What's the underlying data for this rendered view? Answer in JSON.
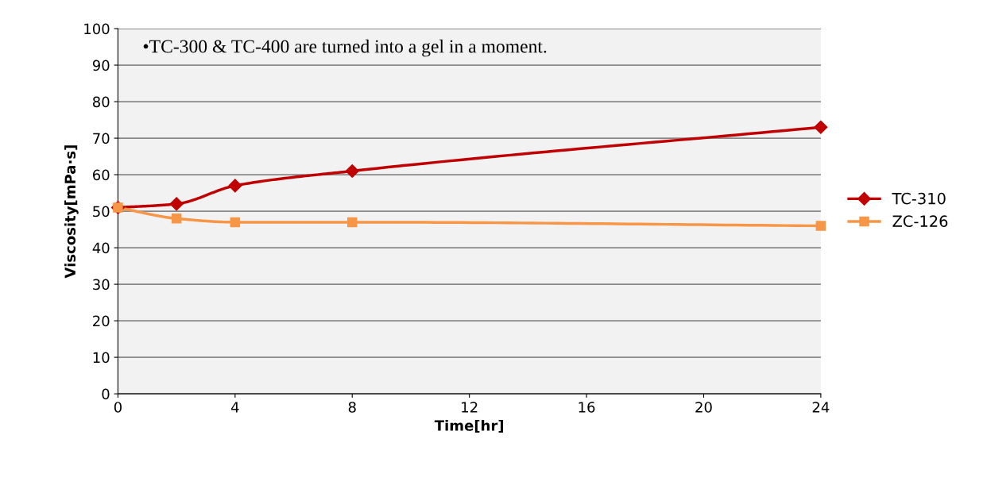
{
  "chart_data": {
    "type": "line",
    "xlabel": "Time[hr]",
    "ylabel": "Viscosity[mPa·s]",
    "xlim": [
      0,
      24
    ],
    "xticks": [
      0,
      4,
      8,
      12,
      16,
      20,
      24
    ],
    "ylim": [
      0,
      100
    ],
    "yticks": [
      0,
      10,
      20,
      30,
      40,
      50,
      60,
      70,
      80,
      90,
      100
    ],
    "x": [
      0,
      2,
      4,
      8,
      24
    ],
    "series": [
      {
        "name": "TC-310",
        "color": "#c00000",
        "values": [
          51,
          52,
          57,
          61,
          73
        ],
        "marker": "diamond"
      },
      {
        "name": "ZC-126",
        "color": "#f79646",
        "values": [
          51,
          48,
          47,
          47,
          46
        ],
        "marker": "square"
      }
    ],
    "annotations": [
      "•TC-300 & TC-400 are turned into a gel in a moment."
    ],
    "grid": "y",
    "legend": "right",
    "line_style": "solid"
  }
}
